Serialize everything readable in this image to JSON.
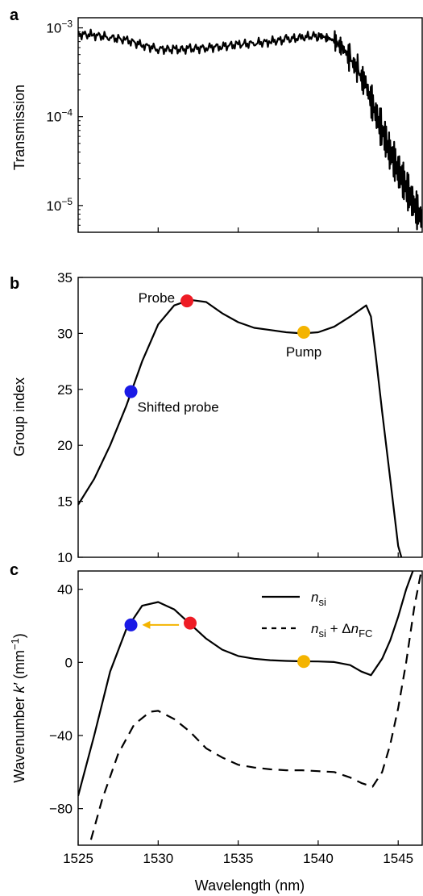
{
  "chart_data": [
    {
      "panel": "a",
      "type": "line",
      "ylabel": "Transmission",
      "yscale": "log",
      "ylim": [
        5e-06,
        0.0013
      ],
      "xlim": [
        1525,
        1546.5
      ],
      "yticks": [
        1e-05,
        0.0001,
        0.001
      ],
      "ytick_labels": [
        {
          "base": "10",
          "exp": "−5"
        },
        {
          "base": "10",
          "exp": "−4"
        },
        {
          "base": "10",
          "exp": "−3"
        }
      ],
      "series": [
        {
          "color": "#000000",
          "style": "solid",
          "x": [
            1525.0,
            1526.0,
            1527.0,
            1528.0,
            1529.0,
            1530.0,
            1531.0,
            1532.0,
            1533.0,
            1534.0,
            1535.0,
            1536.0,
            1537.0,
            1538.0,
            1539.0,
            1540.0,
            1540.5,
            1541.0,
            1541.5,
            1542.0,
            1542.5,
            1543.0,
            1543.5,
            1544.0,
            1544.5,
            1545.0,
            1545.5,
            1546.0,
            1546.5
          ],
          "y": [
            0.00085,
            0.00083,
            0.00078,
            0.00073,
            0.00064,
            0.00058,
            0.00057,
            0.00058,
            0.0006,
            0.00062,
            0.00065,
            0.00067,
            0.0007,
            0.00074,
            0.00078,
            0.00082,
            0.00078,
            0.00072,
            0.0006,
            0.00045,
            0.00032,
            0.00022,
            0.00012,
            7e-05,
            4e-05,
            2.5e-05,
            1.6e-05,
            1e-05,
            7e-06
          ]
        }
      ]
    },
    {
      "panel": "b",
      "type": "line",
      "ylabel": "Group index",
      "ylim": [
        10,
        35
      ],
      "xlim": [
        1525,
        1546.5
      ],
      "yticks": [
        10,
        15,
        20,
        25,
        30,
        35
      ],
      "series": [
        {
          "color": "#000000",
          "style": "solid",
          "x": [
            1525.0,
            1526.0,
            1527.0,
            1528.0,
            1529.0,
            1530.0,
            1531.0,
            1532.0,
            1533.0,
            1534.0,
            1535.0,
            1536.0,
            1537.0,
            1538.0,
            1539.0,
            1540.0,
            1541.0,
            1542.0,
            1542.5,
            1543.0,
            1543.3,
            1543.6,
            1544.0,
            1544.5,
            1545.0,
            1545.2
          ],
          "y": [
            14.7,
            17.0,
            20.0,
            23.5,
            27.5,
            30.8,
            32.5,
            33.0,
            32.8,
            31.8,
            31.0,
            30.5,
            30.3,
            30.1,
            30.0,
            30.1,
            30.6,
            31.5,
            32.0,
            32.5,
            31.5,
            28.0,
            23.0,
            17.0,
            11.0,
            10.0
          ]
        }
      ],
      "markers": [
        {
          "label": "Probe",
          "x": 1531.8,
          "y": 32.9,
          "color": "#ee1c25"
        },
        {
          "label": "Pump",
          "x": 1539.1,
          "y": 30.1,
          "color": "#f4b400"
        },
        {
          "label": "Shifted probe",
          "x": 1528.3,
          "y": 24.8,
          "color": "#1a1ae6"
        }
      ]
    },
    {
      "panel": "c",
      "type": "line",
      "xlabel": "Wavelength (nm)",
      "ylabel_parts": {
        "main": "Wavenumber ",
        "k": "k′",
        "unit": " (mm",
        "exp": "−1",
        "close": ")"
      },
      "xlim": [
        1525,
        1546.5
      ],
      "ylim": [
        -100,
        50
      ],
      "xticks": [
        1525,
        1530,
        1535,
        1540,
        1545
      ],
      "yticks": [
        -80,
        -40,
        0,
        40
      ],
      "ytick_labels": [
        "-80",
        "-40",
        "0",
        "40"
      ],
      "legend": [
        {
          "style": "solid",
          "italic": "n",
          "sub": "si",
          "rest": "",
          "rest_sub": ""
        },
        {
          "style": "dashed",
          "italic": "n",
          "sub": "si",
          "rest": " + Δ",
          "rest_italic": "n",
          "rest_sub": "FC"
        }
      ],
      "series": [
        {
          "style": "solid",
          "color": "#000000",
          "x": [
            1525.0,
            1526.0,
            1527.0,
            1528.0,
            1529.0,
            1530.0,
            1531.0,
            1532.0,
            1533.0,
            1534.0,
            1535.0,
            1536.0,
            1537.0,
            1538.0,
            1539.0,
            1540.0,
            1541.0,
            1542.0,
            1542.7,
            1543.3,
            1544.0,
            1544.5,
            1545.0,
            1545.5,
            1546.0,
            1546.2
          ],
          "y": [
            -73.0,
            -40.0,
            -5.0,
            18.0,
            31.0,
            33.0,
            29.0,
            21.0,
            13.0,
            7.0,
            3.5,
            2.0,
            1.2,
            0.8,
            0.6,
            0.5,
            0.2,
            -1.5,
            -5.0,
            -7.0,
            2.0,
            12.0,
            25.0,
            40.0,
            52.0,
            55.0
          ]
        },
        {
          "style": "dashed",
          "color": "#000000",
          "x": [
            1525.8,
            1526.5,
            1527.5,
            1528.5,
            1529.5,
            1530.0,
            1531.0,
            1532.0,
            1533.0,
            1534.0,
            1535.0,
            1536.0,
            1537.0,
            1538.0,
            1539.0,
            1540.0,
            1541.0,
            1542.0,
            1542.7,
            1543.4,
            1544.0,
            1544.5,
            1545.0,
            1545.5,
            1546.0,
            1546.4
          ],
          "y": [
            -97.0,
            -75.0,
            -50.0,
            -34.0,
            -27.0,
            -26.5,
            -31.0,
            -38.0,
            -47.0,
            -52.0,
            -56.0,
            -57.5,
            -58.5,
            -59.0,
            -59.0,
            -59.5,
            -60.0,
            -63.0,
            -66.0,
            -68.0,
            -60.0,
            -45.0,
            -25.0,
            0.0,
            30.0,
            48.0
          ]
        }
      ],
      "markers": [
        {
          "x": 1528.3,
          "y": 20.5,
          "color": "#1a1ae6"
        },
        {
          "x": 1532.0,
          "y": 21.5,
          "color": "#ee1c25"
        },
        {
          "x": 1539.1,
          "y": 0.5,
          "color": "#f4b400"
        }
      ],
      "arrow": {
        "from_x": 1531.3,
        "to_x": 1529.0,
        "y": 20.5,
        "color": "#f4b400"
      }
    }
  ]
}
